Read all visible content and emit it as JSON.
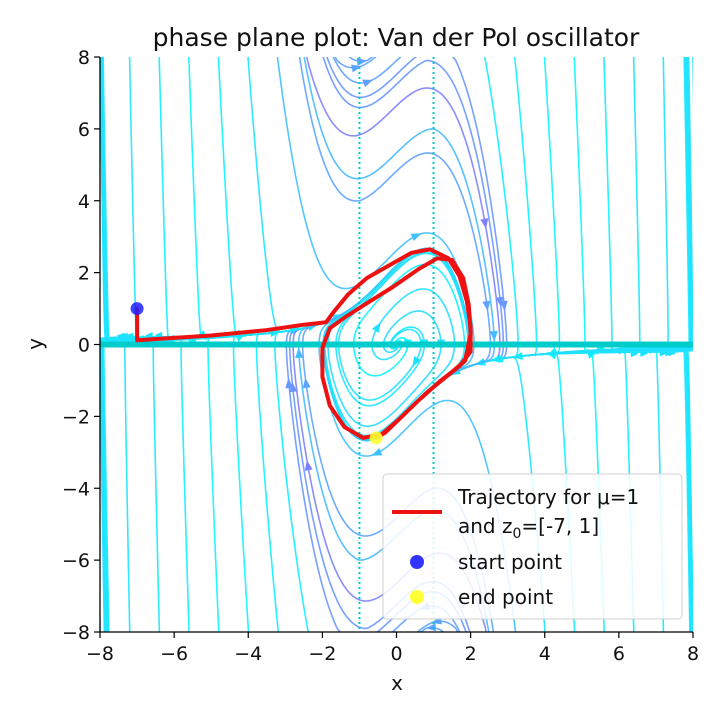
{
  "chart_data": {
    "type": "streamplot",
    "title": "phase plane plot: Van der Pol oscillator",
    "xlabel": "x",
    "ylabel": "y",
    "xlim": [
      -8,
      8
    ],
    "ylim": [
      -8,
      8
    ],
    "xticks": [
      -8,
      -6,
      -4,
      -2,
      0,
      2,
      4,
      6,
      8
    ],
    "yticks": [
      -8,
      -6,
      -4,
      -2,
      0,
      2,
      4,
      6,
      8
    ],
    "xtick_labels": [
      "−8",
      "−6",
      "−4",
      "−2",
      "0",
      "2",
      "4",
      "6",
      "8"
    ],
    "ytick_labels": [
      "−8",
      "−6",
      "−4",
      "−2",
      "0",
      "2",
      "4",
      "6",
      "8"
    ],
    "grid": false,
    "mu": 1,
    "field_colormap": "cool",
    "trajectory": {
      "color": "#ee1111",
      "points": [
        [
          -7.0,
          1.0
        ],
        [
          -7.0,
          0.12
        ],
        [
          -5.0,
          0.25
        ],
        [
          -3.5,
          0.4
        ],
        [
          -2.5,
          0.55
        ],
        [
          -1.9,
          0.62
        ],
        [
          -1.7,
          0.9
        ],
        [
          -1.3,
          1.4
        ],
        [
          -0.8,
          1.85
        ],
        [
          -0.2,
          2.2
        ],
        [
          0.4,
          2.55
        ],
        [
          0.9,
          2.65
        ],
        [
          1.4,
          2.4
        ],
        [
          1.7,
          1.9
        ],
        [
          1.9,
          1.2
        ],
        [
          2.0,
          0.5
        ],
        [
          2.0,
          -0.2
        ],
        [
          1.7,
          -0.6
        ],
        [
          1.2,
          -1.0
        ],
        [
          0.6,
          -1.55
        ],
        [
          0.1,
          -2.05
        ],
        [
          -0.4,
          -2.5
        ],
        [
          -0.9,
          -2.6
        ],
        [
          -1.4,
          -2.3
        ],
        [
          -1.8,
          -1.7
        ],
        [
          -2.0,
          -0.9
        ],
        [
          -2.0,
          -0.1
        ],
        [
          -1.8,
          0.45
        ],
        [
          -1.4,
          0.75
        ],
        [
          -0.8,
          1.15
        ],
        [
          -0.1,
          1.6
        ],
        [
          0.6,
          2.1
        ],
        [
          1.1,
          2.4
        ],
        [
          1.5,
          2.35
        ],
        [
          1.8,
          1.85
        ],
        [
          1.95,
          1.1
        ],
        [
          2.0,
          0.3
        ],
        [
          1.85,
          -0.45
        ],
        [
          1.4,
          -0.85
        ],
        [
          0.8,
          -1.35
        ],
        [
          0.2,
          -1.95
        ],
        [
          -0.3,
          -2.45
        ],
        [
          -0.55,
          -2.6
        ]
      ]
    },
    "start_point": {
      "x": -7,
      "y": 1,
      "color": "#1f1fff"
    },
    "end_point": {
      "x": -0.55,
      "y": -2.6,
      "color": "#ffff33"
    },
    "legend": {
      "position": "lower right",
      "entries": [
        {
          "label_line1": "Trajectory for μ=1",
          "label_line2_prefix": "and z",
          "label_line2_sub": "0",
          "label_line2_suffix": "=[-7, 1]",
          "marker": "line",
          "color": "#ee1111"
        },
        {
          "label": "start point",
          "marker": "dot",
          "color": "#3333ff"
        },
        {
          "label": "end point",
          "marker": "dot",
          "color": "#ffff33"
        }
      ]
    }
  }
}
